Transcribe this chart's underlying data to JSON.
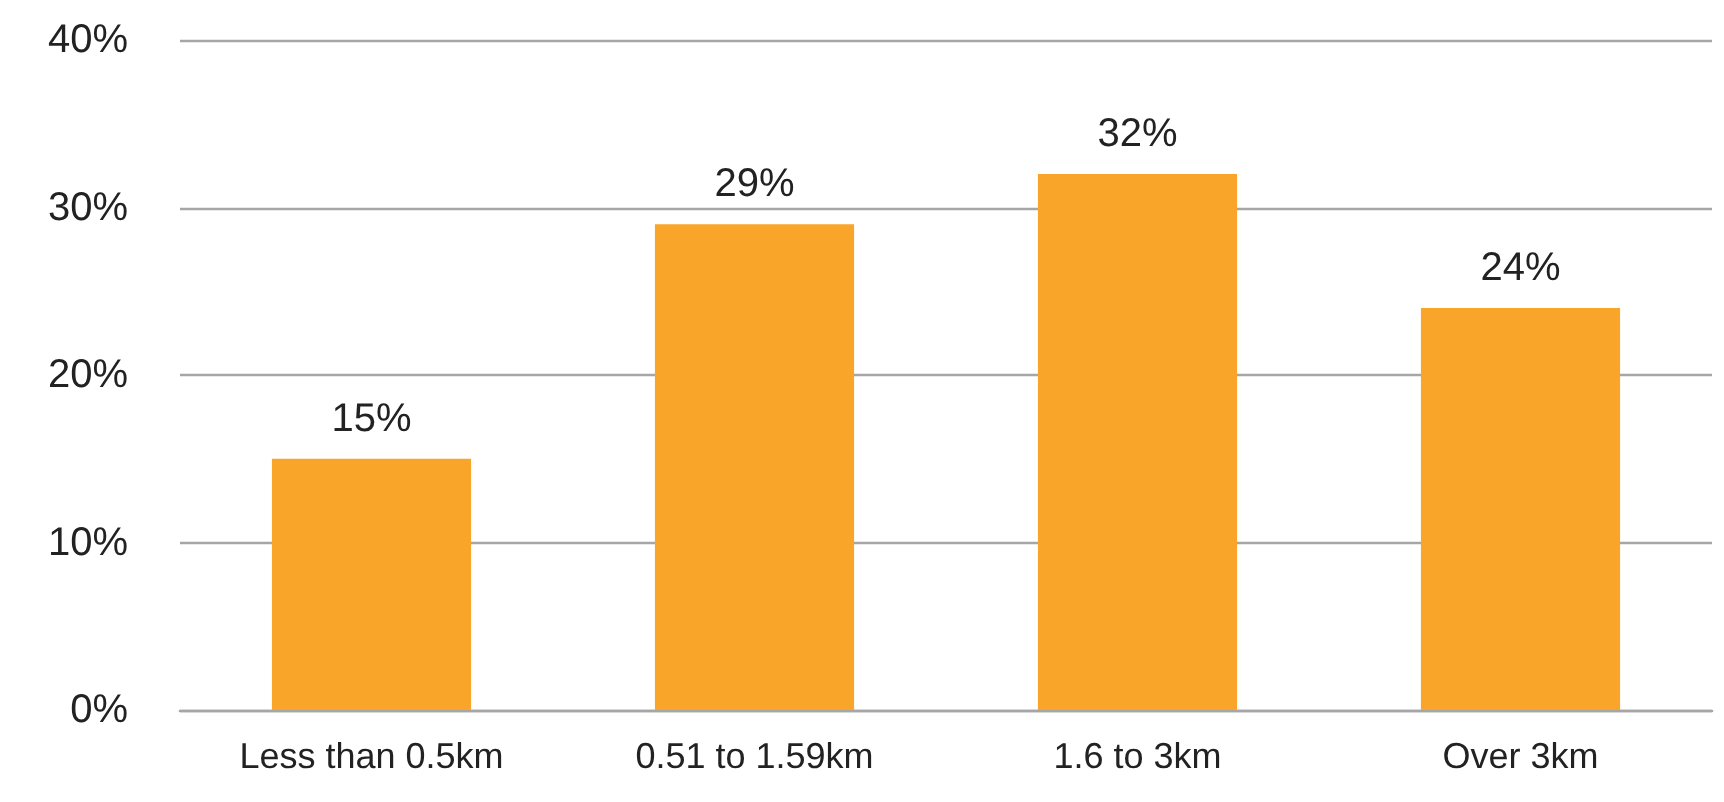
{
  "chart_data": {
    "type": "bar",
    "categories": [
      "Less than 0.5km",
      "0.51 to 1.59km",
      "1.6 to 3km",
      "Over 3km"
    ],
    "values": [
      15,
      29,
      32,
      24
    ],
    "color": "#f9a52a",
    "value_labels": [
      "15%",
      "29%",
      "32%",
      "24%"
    ],
    "ylim": [
      0,
      40
    ],
    "yticks": [
      {
        "value": 0,
        "label": "0%"
      },
      {
        "value": 10,
        "label": "10%"
      },
      {
        "value": 20,
        "label": "20%"
      },
      {
        "value": 30,
        "label": "30%"
      },
      {
        "value": 40,
        "label": "40%"
      }
    ],
    "grid": "y"
  }
}
